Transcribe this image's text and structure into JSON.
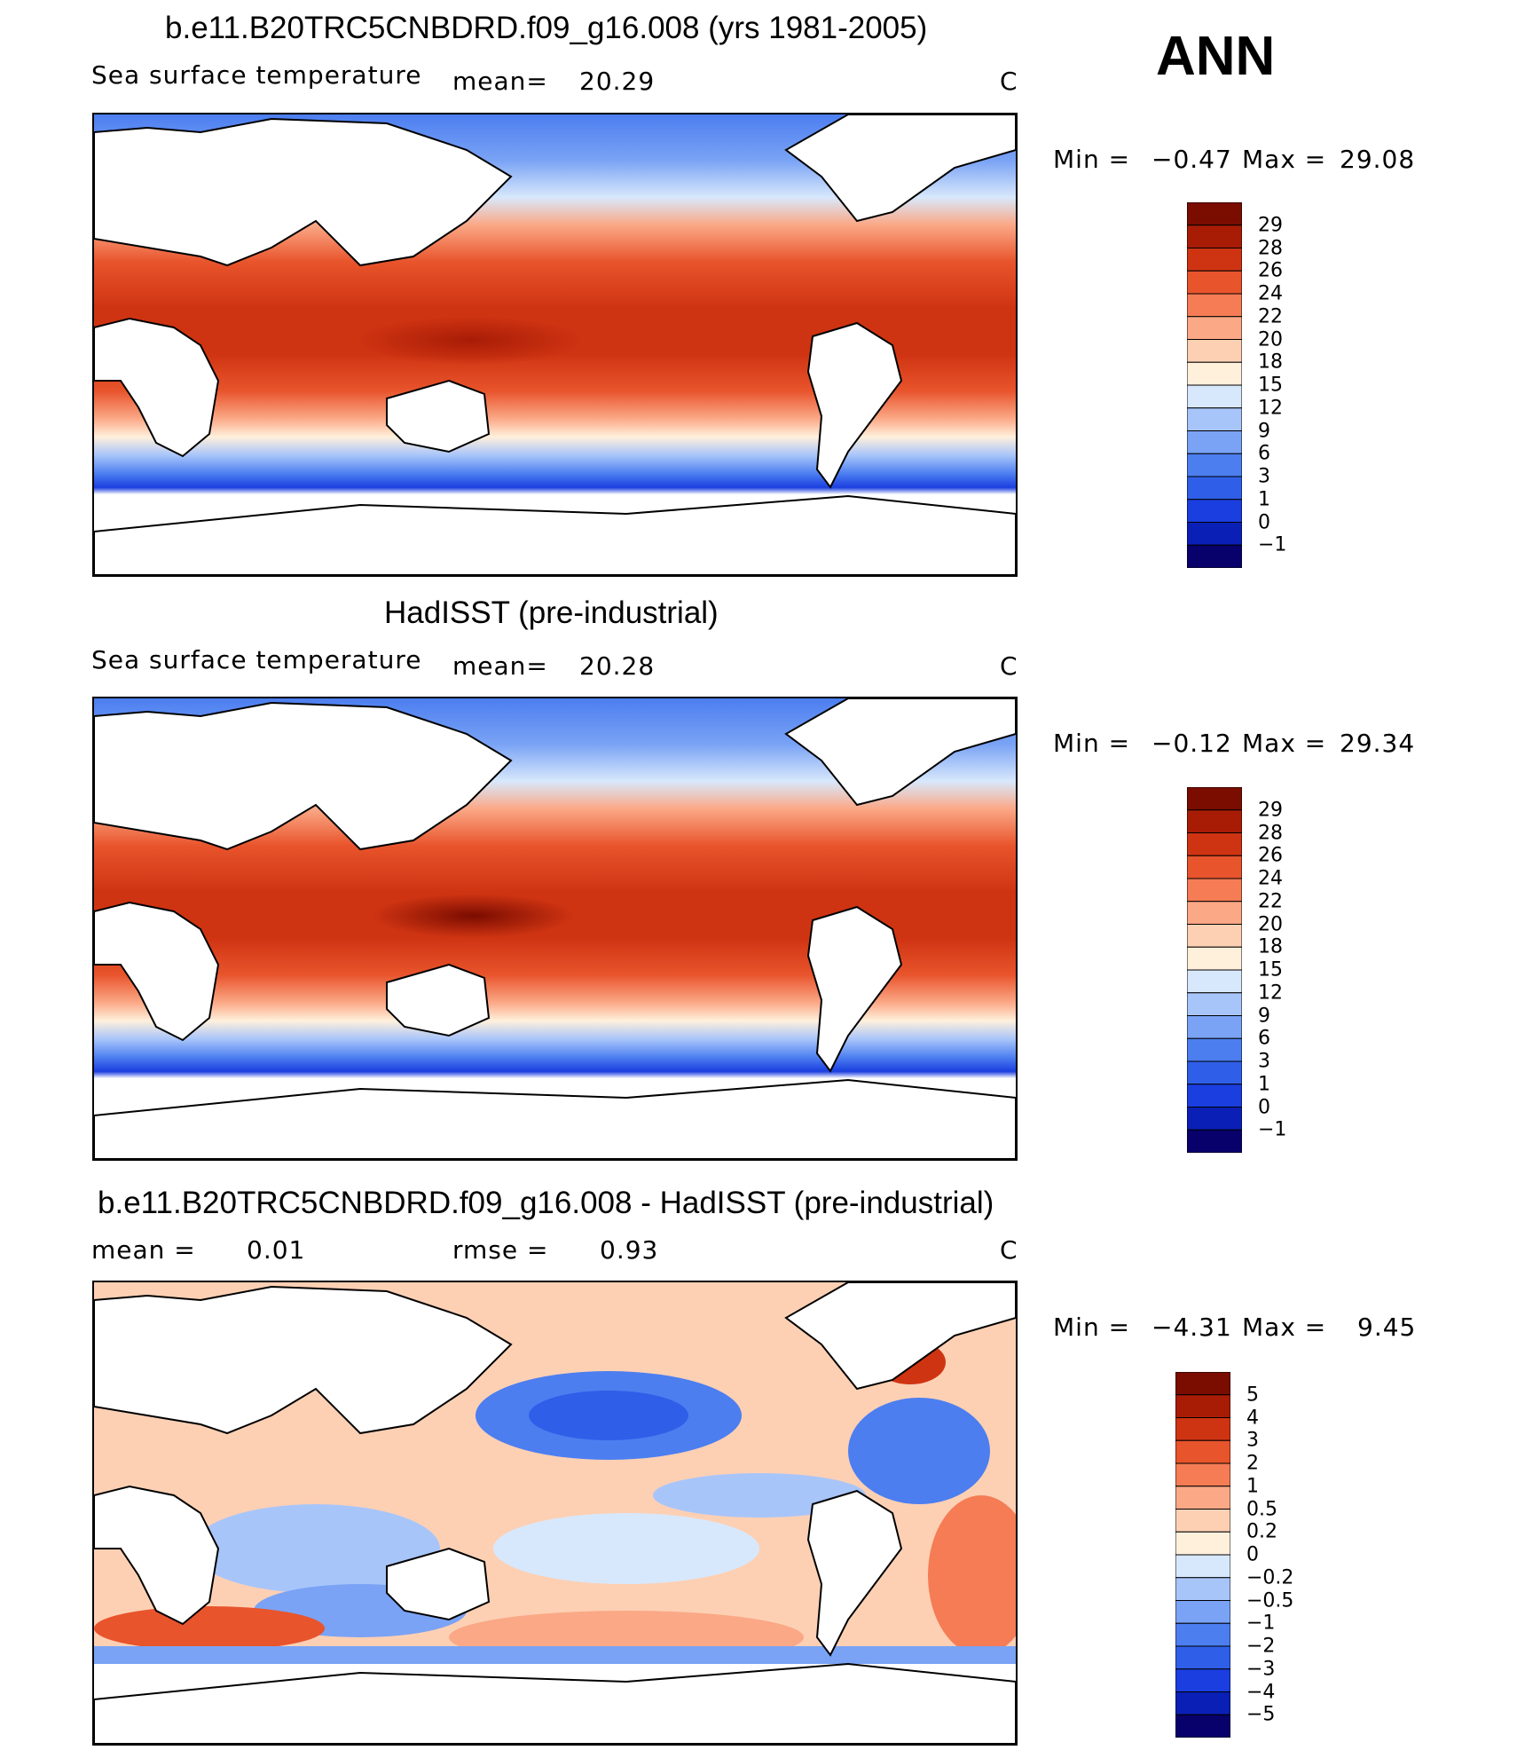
{
  "season": "ANN",
  "panels": [
    {
      "id": "model",
      "title": "b.e11.B20TRC5CNBDRD.f09_g16.008 (yrs 1981-2005)",
      "field_label": "Sea surface temperature",
      "stat1_label": "mean=",
      "stat1_value": "20.29",
      "stat2_label": "",
      "stat2_value": "",
      "units": "C",
      "min_label": "Min =",
      "min_value": "−0.47",
      "max_label": "Max =",
      "max_value": "29.08",
      "levels": [
        "29",
        "28",
        "26",
        "24",
        "22",
        "20",
        "18",
        "15",
        "12",
        "9",
        "6",
        "3",
        "1",
        "0",
        "−1"
      ]
    },
    {
      "id": "obs",
      "title": "HadISST (pre-industrial)",
      "field_label": "Sea surface temperature",
      "stat1_label": "mean=",
      "stat1_value": "20.28",
      "stat2_label": "",
      "stat2_value": "",
      "units": "C",
      "min_label": "Min =",
      "min_value": "−0.12",
      "max_label": "Max =",
      "max_value": "29.34",
      "levels": [
        "29",
        "28",
        "26",
        "24",
        "22",
        "20",
        "18",
        "15",
        "12",
        "9",
        "6",
        "3",
        "1",
        "0",
        "−1"
      ]
    },
    {
      "id": "diff",
      "title": "b.e11.B20TRC5CNBDRD.f09_g16.008 - HadISST (pre-industrial)",
      "field_label": "",
      "stat1_label": "mean =",
      "stat1_value": "0.01",
      "stat2_label": "rmse =",
      "stat2_value": "0.93",
      "units": "C",
      "min_label": "Min =",
      "min_value": "−4.31",
      "max_label": "Max =",
      "max_value": "9.45",
      "levels": [
        "5",
        "4",
        "3",
        "2",
        "1",
        "0.5",
        "0.2",
        "0",
        "−0.2",
        "−0.5",
        "−1",
        "−2",
        "−3",
        "−4",
        "−5"
      ]
    }
  ],
  "colors": {
    "sst_scale": [
      "#08006b",
      "#0a1fb5",
      "#1a3ee0",
      "#2f5fe8",
      "#4c7ef0",
      "#7aa3f5",
      "#a8c5fa",
      "#d8e8fc",
      "#fff0dc",
      "#fdd0b4",
      "#fba886",
      "#f57c55",
      "#e8542c",
      "#cf3412",
      "#a81c06",
      "#7a0c00"
    ],
    "diff_scale": [
      "#08006b",
      "#0a1fb5",
      "#1a3ee0",
      "#2f5fe8",
      "#4c7ef0",
      "#7aa3f5",
      "#a8c5fa",
      "#d8e8fc",
      "#fff0dc",
      "#fdd0b4",
      "#fba886",
      "#f57c55",
      "#e8542c",
      "#cf3412",
      "#a81c06",
      "#7a0c00"
    ],
    "land": "#ffffff",
    "coast": "#000000"
  }
}
